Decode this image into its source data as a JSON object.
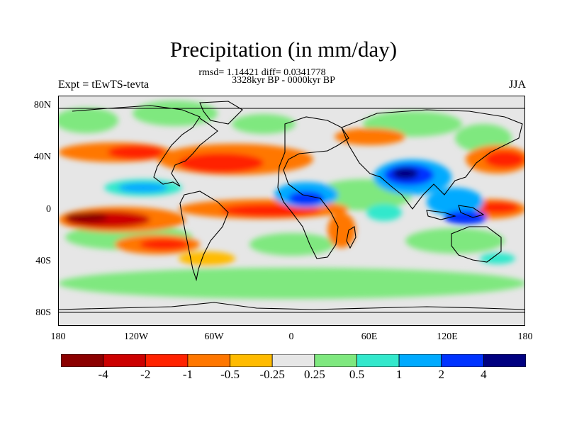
{
  "title": "Precipitation (in mm/day)",
  "stats": "rmsd= 1.14421 diff= 0.0341778",
  "period": "3328kyr BP - 0000kyr BP",
  "experiment": "Expt = tEwTS-tevta",
  "season": "JJA",
  "lat_ticks": [
    "80N",
    "40N",
    "0",
    "40S",
    "80S"
  ],
  "lon_ticks": [
    "180",
    "120W",
    "60W",
    "0",
    "60E",
    "120E",
    "180"
  ],
  "colorbar": {
    "labels": [
      "-4",
      "-2",
      "-1",
      "-0.5",
      "-0.25",
      "0.25",
      "0.5",
      "1",
      "2",
      "4"
    ],
    "colors": [
      "#8b0000",
      "#cc0000",
      "#ff2200",
      "#ff7700",
      "#ffbb00",
      "#e6e6e6",
      "#7fe87f",
      "#33e8cc",
      "#00aaff",
      "#0033ff",
      "#000080"
    ]
  }
}
